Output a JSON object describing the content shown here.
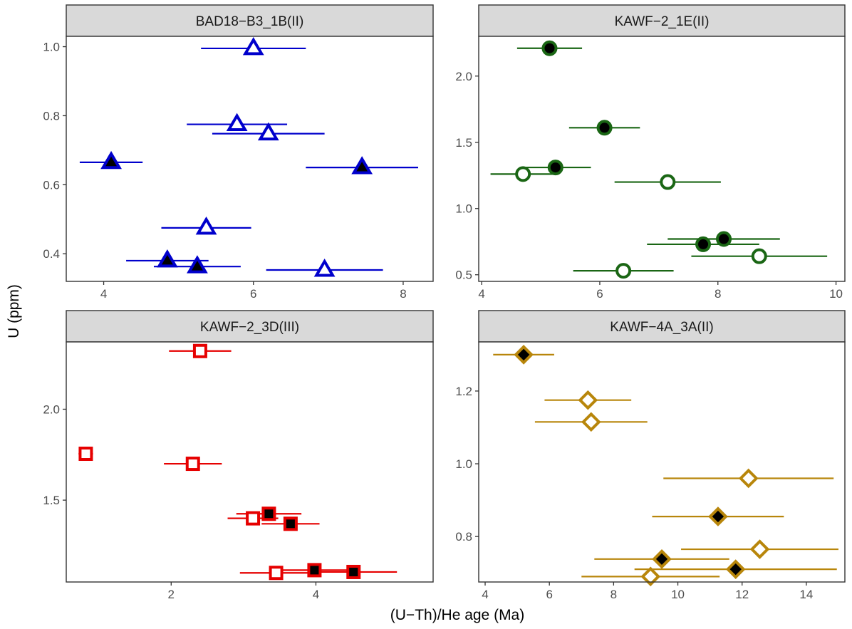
{
  "chart_data": {
    "type": "scatter",
    "xlabel": "(U−Th)/He age (Ma)",
    "ylabel": "U (ppm)",
    "panels": [
      {
        "title": "BAD18−B3_1B(II)",
        "color": "#0000cc",
        "marker": "triangle",
        "xlim": [
          3.5,
          8.4
        ],
        "ylim": [
          0.32,
          1.03
        ],
        "xticks": [
          4,
          6,
          8
        ],
        "yticks": [
          0.4,
          0.6,
          0.8,
          1.0
        ],
        "yticklabels": [
          "0.4",
          "0.6",
          "0.8",
          "1.0"
        ],
        "points": [
          {
            "x": 6.0,
            "y": 0.995,
            "xerr": 0.7,
            "filled": false
          },
          {
            "x": 5.78,
            "y": 0.775,
            "xerr": 0.67,
            "filled": false
          },
          {
            "x": 6.2,
            "y": 0.748,
            "xerr": 0.75,
            "filled": false
          },
          {
            "x": 4.1,
            "y": 0.665,
            "xerr": 0.42,
            "filled": true
          },
          {
            "x": 7.45,
            "y": 0.65,
            "xerr": 0.75,
            "filled": true
          },
          {
            "x": 5.37,
            "y": 0.475,
            "xerr": 0.6,
            "filled": false
          },
          {
            "x": 4.85,
            "y": 0.38,
            "xerr": 0.55,
            "filled": true
          },
          {
            "x": 5.25,
            "y": 0.363,
            "xerr": 0.58,
            "filled": true
          },
          {
            "x": 6.95,
            "y": 0.353,
            "xerr": 0.78,
            "filled": false
          }
        ]
      },
      {
        "title": "KAWF−2_1E(II)",
        "color": "#1a6614",
        "marker": "circle",
        "xlim": [
          3.95,
          10.15
        ],
        "ylim": [
          0.45,
          2.3
        ],
        "xticks": [
          4,
          6,
          8,
          10
        ],
        "yticks": [
          0.5,
          1.0,
          1.5,
          2.0
        ],
        "yticklabels": [
          "0.5",
          "1.0",
          "1.5",
          "2.0"
        ],
        "points": [
          {
            "x": 5.15,
            "y": 2.21,
            "xerr": 0.55,
            "filled": true
          },
          {
            "x": 6.08,
            "y": 1.61,
            "xerr": 0.6,
            "filled": true
          },
          {
            "x": 5.25,
            "y": 1.31,
            "xerr": 0.6,
            "filled": true
          },
          {
            "x": 4.7,
            "y": 1.26,
            "xerr": 0.55,
            "filled": false
          },
          {
            "x": 7.15,
            "y": 1.2,
            "xerr": 0.9,
            "filled": false
          },
          {
            "x": 8.1,
            "y": 0.77,
            "xerr": 0.95,
            "filled": true
          },
          {
            "x": 7.75,
            "y": 0.73,
            "xerr": 0.95,
            "filled": true
          },
          {
            "x": 8.7,
            "y": 0.64,
            "xerr": 1.15,
            "filled": false
          },
          {
            "x": 6.4,
            "y": 0.53,
            "xerr": 0.85,
            "filled": false
          }
        ]
      },
      {
        "title": "KAWF−2_3D(III)",
        "color": "#e60000",
        "marker": "square",
        "xlim": [
          0.55,
          5.62
        ],
        "ylim": [
          1.05,
          2.37
        ],
        "xticks": [
          2,
          4
        ],
        "yticks": [
          1.5,
          2.0
        ],
        "yticklabels": [
          "1.5",
          "2.0"
        ],
        "points": [
          {
            "x": 2.4,
            "y": 2.32,
            "xerr": 0.43,
            "filled": false
          },
          {
            "x": 0.82,
            "y": 1.755,
            "xerr": 0.1,
            "filled": false
          },
          {
            "x": 2.3,
            "y": 1.7,
            "xerr": 0.4,
            "filled": false
          },
          {
            "x": 3.35,
            "y": 1.425,
            "xerr": 0.45,
            "filled": true
          },
          {
            "x": 3.13,
            "y": 1.4,
            "xerr": 0.35,
            "filled": false
          },
          {
            "x": 3.65,
            "y": 1.37,
            "xerr": 0.4,
            "filled": true
          },
          {
            "x": 3.98,
            "y": 1.115,
            "xerr": 0.45,
            "filled": true
          },
          {
            "x": 4.52,
            "y": 1.105,
            "xerr": 0.6,
            "filled": true
          },
          {
            "x": 3.45,
            "y": 1.1,
            "xerr": 0.5,
            "filled": false
          }
        ]
      },
      {
        "title": "KAWF−4A_3A(II)",
        "color": "#b8860b",
        "marker": "diamond",
        "xlim": [
          3.8,
          15.2
        ],
        "ylim": [
          0.675,
          1.335
        ],
        "xticks": [
          4,
          6,
          8,
          10,
          12,
          14
        ],
        "yticks": [
          0.8,
          1.0,
          1.2
        ],
        "yticklabels": [
          "0.8",
          "1.0",
          "1.2"
        ],
        "points": [
          {
            "x": 5.2,
            "y": 1.3,
            "xerr": 0.95,
            "filled": true
          },
          {
            "x": 7.2,
            "y": 1.175,
            "xerr": 1.35,
            "filled": false
          },
          {
            "x": 7.3,
            "y": 1.115,
            "xerr": 1.75,
            "filled": false
          },
          {
            "x": 12.2,
            "y": 0.96,
            "xerr": 2.65,
            "filled": false
          },
          {
            "x": 11.25,
            "y": 0.855,
            "xerr": 2.05,
            "filled": true
          },
          {
            "x": 12.55,
            "y": 0.765,
            "xerr": 2.45,
            "filled": false
          },
          {
            "x": 9.5,
            "y": 0.738,
            "xerr": 2.1,
            "filled": true
          },
          {
            "x": 11.8,
            "y": 0.71,
            "xerr": 3.15,
            "filled": true
          },
          {
            "x": 9.15,
            "y": 0.69,
            "xerr": 2.15,
            "filled": false
          }
        ]
      }
    ]
  }
}
